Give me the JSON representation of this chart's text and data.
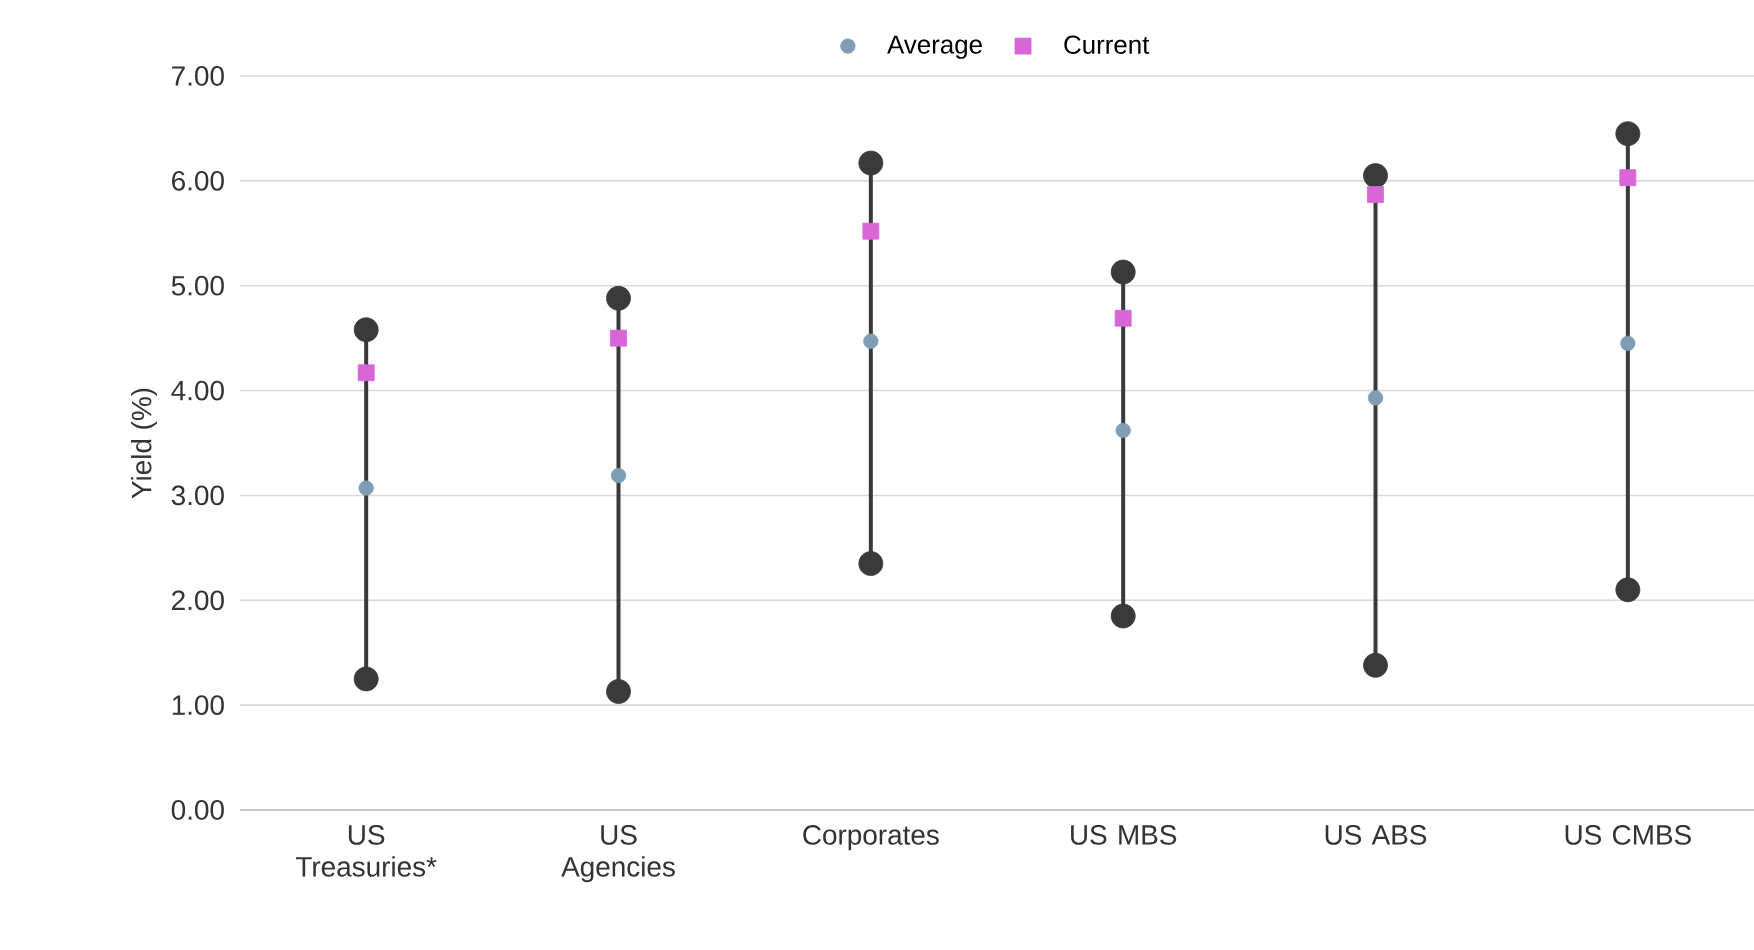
{
  "chart_data": {
    "type": "scatter",
    "ylabel": "Yield (%)",
    "categories": [
      "US Treasuries*",
      "US Agencies",
      "Corporates",
      "US MBS",
      "US ABS",
      "US CMBS"
    ],
    "ylim": [
      0,
      7
    ],
    "yticks": [
      {
        "value": 0,
        "label": "0.00"
      },
      {
        "value": 1,
        "label": "1.00"
      },
      {
        "value": 2,
        "label": "2.00"
      },
      {
        "value": 3,
        "label": "3.00"
      },
      {
        "value": 4,
        "label": "4.00"
      },
      {
        "value": 5,
        "label": "5.00"
      },
      {
        "value": 6,
        "label": "6.00"
      },
      {
        "value": 7,
        "label": "7.00"
      }
    ],
    "grid": "y",
    "legend": "top",
    "series": [
      {
        "marker": "circle",
        "color": "#3a3a3a",
        "values": [
          1.25,
          1.13,
          2.35,
          1.85,
          1.38,
          2.1
        ]
      },
      {
        "marker": "circle",
        "color": "#3a3a3a",
        "values": [
          4.58,
          4.88,
          6.17,
          5.13,
          6.05,
          6.45
        ]
      },
      {
        "marker": "circle",
        "name": "Average",
        "color": "#7f9db5",
        "values": [
          3.07,
          3.19,
          4.47,
          3.62,
          3.93,
          4.45
        ]
      },
      {
        "marker": "square",
        "name": "Current",
        "color": "#d966d6",
        "values": [
          4.17,
          4.5,
          5.52,
          4.69,
          5.87,
          6.03
        ]
      }
    ]
  }
}
